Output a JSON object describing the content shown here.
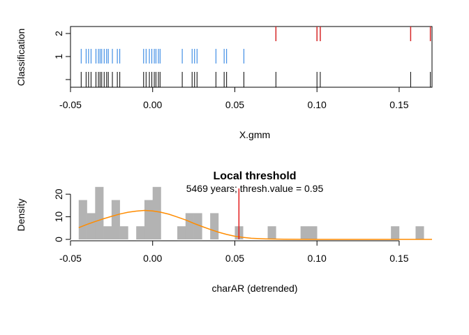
{
  "chart_data": [
    {
      "type": "strip",
      "xlabel": "X.gmm",
      "ylabel": "Classification",
      "xlim": [
        -0.05,
        0.17
      ],
      "ylim": [
        0,
        2
      ],
      "x_ticks": [
        "-0.05",
        "0.00",
        "0.05",
        "0.10",
        "0.15"
      ],
      "x_tick_values": [
        -0.05,
        0,
        0.05,
        0.1,
        0.15
      ],
      "y_ticks": [
        "1",
        "2"
      ],
      "y_tick_values": [
        1,
        2
      ],
      "colors": {
        "class1": "#1f7ae0",
        "class2": "#d62728",
        "rug": "#000000"
      },
      "class1_x": [
        -0.0435,
        -0.0405,
        -0.039,
        -0.0375,
        -0.0345,
        -0.033,
        -0.032,
        -0.031,
        -0.0295,
        -0.028,
        -0.027,
        -0.0245,
        -0.0215,
        -0.02,
        -0.0055,
        -0.004,
        -0.002,
        -0.0005,
        0.001,
        0.002,
        0.0035,
        0.0045,
        0.018,
        0.024,
        0.0255,
        0.027,
        0.0385,
        0.0435,
        0.045,
        0.0555
      ],
      "class2_x": [
        0.075,
        0.1,
        0.102,
        0.157,
        0.169
      ]
    },
    {
      "type": "histogram",
      "title": "Local threshold",
      "subtitle": "5469 years; thresh.value = 0.95",
      "xlabel": "charAR (detrended)",
      "ylabel": "Density",
      "xlim": [
        -0.05,
        0.17
      ],
      "ylim": [
        0,
        25
      ],
      "x_ticks": [
        "-0.05",
        "0.00",
        "0.05",
        "0.10",
        "0.15"
      ],
      "x_tick_values": [
        -0.05,
        0,
        0.05,
        0.1,
        0.15
      ],
      "y_ticks": [
        "0",
        "10",
        "20"
      ],
      "y_tick_values": [
        0,
        10,
        20
      ],
      "bin_width": 0.005,
      "bin_start": -0.045,
      "densities": [
        17.4,
        11.6,
        23.2,
        5.8,
        17.4,
        5.8,
        0,
        5.8,
        17.4,
        23.2,
        0,
        0,
        5.8,
        11.6,
        11.6,
        0,
        11.6,
        0,
        0,
        5.8,
        0,
        0,
        0,
        5.8,
        0,
        0,
        0,
        5.8,
        5.8,
        0,
        0,
        0,
        0,
        0,
        0,
        0,
        0,
        0,
        5.8,
        0,
        0,
        5.8
      ],
      "threshold_x": 0.0525,
      "colors": {
        "bars": "#b3b3b3",
        "curve": "#ff8c00",
        "threshold": "#e41a1c"
      },
      "curve": {
        "x": [
          -0.045,
          -0.04,
          -0.035,
          -0.03,
          -0.025,
          -0.02,
          -0.015,
          -0.01,
          -0.005,
          0,
          0.005,
          0.01,
          0.015,
          0.02,
          0.025,
          0.03,
          0.035,
          0.04,
          0.045,
          0.05,
          0.055,
          0.06,
          0.07,
          0.08,
          0.1,
          0.12,
          0.14,
          0.17
        ],
        "y": [
          5.2,
          6.6,
          7.9,
          9.1,
          10.2,
          11.2,
          12.0,
          12.5,
          12.8,
          12.6,
          12.0,
          11.1,
          9.9,
          8.6,
          7.1,
          5.7,
          4.4,
          3.2,
          2.2,
          1.4,
          0.9,
          0.5,
          0.2,
          0.05,
          0,
          0,
          0,
          0
        ]
      }
    }
  ]
}
